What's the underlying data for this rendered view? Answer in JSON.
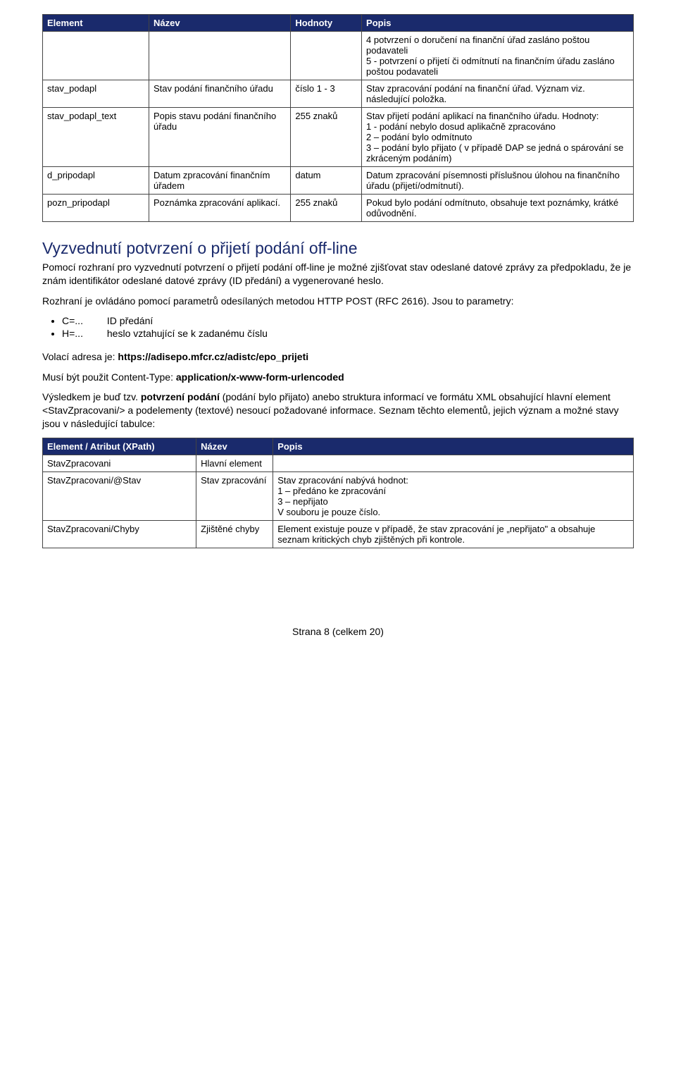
{
  "colors": {
    "header_bg": "#1a2a6c",
    "header_text": "#ffffff",
    "body_text": "#000000",
    "heading_text": "#1a2a6c",
    "border": "#444444"
  },
  "table1": {
    "headers": [
      "Element",
      "Název",
      "Hodnoty",
      "Popis"
    ],
    "rows": [
      {
        "el": "",
        "name": "",
        "val": "",
        "desc": "4 potvrzení o doručení na finanční úřad zasláno poštou podavateli\n5 - potvrzení o přijetí či odmítnutí na finančním úřadu zasláno poštou podavateli"
      },
      {
        "el": "stav_podapl",
        "name": "Stav podání finančního úřadu",
        "val": "číslo 1 - 3",
        "desc": "Stav zpracování podání na finanční úřad. Význam viz. následující položka."
      },
      {
        "el": "stav_podapl_text",
        "name": "Popis stavu podání finančního úřadu",
        "val": "255 znaků",
        "desc": "Stav přijetí podání aplikací na finančního úřadu. Hodnoty:\n1 - podání nebylo dosud aplikačně zpracováno\n2 – podání bylo odmítnuto\n3 – podání bylo přijato ( v případě DAP se jedná o spárování se zkráceným podáním)"
      },
      {
        "el": "d_pripodapl",
        "name": "Datum zpracování finančním úřadem",
        "val": "datum",
        "desc": "Datum zpracování písemnosti příslušnou úlohou na finančního úřadu (přijetí/odmítnutí)."
      },
      {
        "el": "pozn_pripodapl",
        "name": "Poznámka zpracování aplikací.",
        "val": "255 znaků",
        "desc": "Pokud bylo podání odmítnuto, obsahuje text poznámky, krátké odůvodnění."
      }
    ]
  },
  "section_title": "Vyzvednutí potvrzení o přijetí podání off-line",
  "para1": "Pomocí rozhraní pro vyzvednutí potvrzení o přijetí podání off-line je možné zjišťovat stav odeslané datové zprávy za předpokladu, že je znám identifikátor odeslané datové zprávy (ID předání) a vygenerované heslo.",
  "para2": "Rozhraní je ovládáno pomocí parametrů odesílaných metodou HTTP POST (RFC 2616). Jsou to parametry:",
  "params": [
    {
      "label": "C=...",
      "desc": "ID předání"
    },
    {
      "label": "H=...",
      "desc": "heslo vztahující se k zadanému číslu"
    }
  ],
  "line_addr_pre": "Volací adresa je: ",
  "line_addr_bold": "https://adisepo.mfcr.cz/adistc/epo_prijeti",
  "line_ct_pre": "Musí být použit Content-Type: ",
  "line_ct_bold": "application/x-www-form-urlencoded",
  "para3_pre": "Výsledkem je buď tzv. ",
  "para3_bold": "potvrzení podání",
  "para3_post": " (podání bylo přijato) anebo struktura informací ve formátu XML obsahující hlavní element <StavZpracovani/> a podelementy (textové) nesoucí požadované informace. Seznam těchto elementů, jejich význam a možné stavy jsou v následující tabulce:",
  "table2": {
    "headers": [
      "Element / Atribut (XPath)",
      "Název",
      "Popis"
    ],
    "rows": [
      {
        "el": "StavZpracovani",
        "name": "Hlavní element",
        "desc": ""
      },
      {
        "el": "StavZpracovani/@Stav",
        "name": "Stav zpracování",
        "desc": "Stav zpracování nabývá hodnot:\n1 – předáno ke zpracování\n3 – nepřijato\nV souboru je pouze číslo."
      },
      {
        "el": "StavZpracovani/Chyby",
        "name": "Zjištěné chyby",
        "desc": "Element existuje pouze v případě, že stav zpracování je „nepřijato\" a obsahuje seznam kritických chyb zjištěných při kontrole."
      }
    ]
  },
  "footer": "Strana 8 (celkem 20)"
}
